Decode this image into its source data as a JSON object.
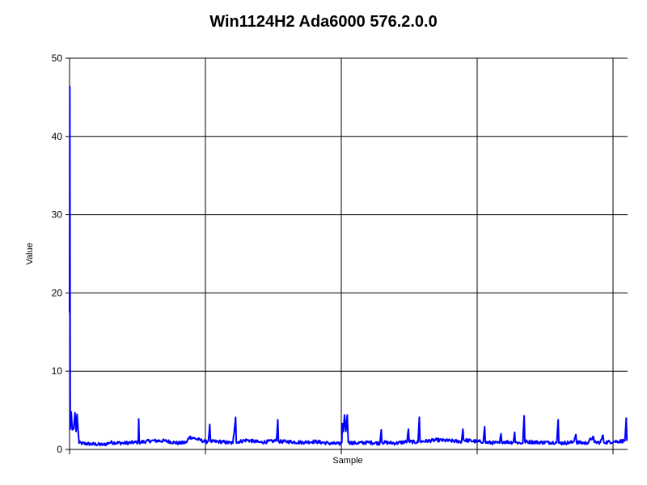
{
  "chart_data": {
    "type": "line",
    "title": "Win1124H2 Ada6000 576.2.0.0",
    "xlabel": "Sample",
    "ylabel": "Value",
    "ylim": [
      0,
      50
    ],
    "xlim": [
      0,
      4100
    ],
    "yticks": [
      0,
      10,
      20,
      30,
      40,
      50
    ],
    "grid": true,
    "line_color": "#0000ff",
    "grid_color": "#000000",
    "series": [
      {
        "values_by_x": [
          [
            0,
            17.5
          ],
          [
            2,
            46.4
          ],
          [
            5,
            2.6
          ],
          [
            12,
            4.8
          ],
          [
            20,
            2.5
          ],
          [
            30,
            2.6
          ],
          [
            40,
            4.7
          ],
          [
            48,
            2.3
          ],
          [
            55,
            4.5
          ],
          [
            62,
            2.6
          ],
          [
            70,
            0.8
          ],
          [
            150,
            0.7
          ],
          [
            250,
            0.6
          ],
          [
            300,
            0.9
          ],
          [
            400,
            0.8
          ],
          [
            480,
            0.9
          ],
          [
            505,
            0.9
          ],
          [
            508,
            3.9
          ],
          [
            512,
            0.9
          ],
          [
            600,
            1.1
          ],
          [
            700,
            1.1
          ],
          [
            800,
            0.8
          ],
          [
            860,
            0.9
          ],
          [
            880,
            1.6
          ],
          [
            920,
            1.4
          ],
          [
            960,
            1.2
          ],
          [
            995,
            1.0
          ],
          [
            1000,
            0.9
          ],
          [
            1020,
            1.1
          ],
          [
            1030,
            3.2
          ],
          [
            1036,
            1.0
          ],
          [
            1100,
            1.0
          ],
          [
            1200,
            0.8
          ],
          [
            1220,
            4.1
          ],
          [
            1225,
            0.9
          ],
          [
            1300,
            1.2
          ],
          [
            1400,
            0.9
          ],
          [
            1520,
            1.1
          ],
          [
            1530,
            3.8
          ],
          [
            1535,
            1.0
          ],
          [
            1600,
            1.0
          ],
          [
            1700,
            0.9
          ],
          [
            1800,
            1.0
          ],
          [
            1900,
            0.8
          ],
          [
            1980,
            0.7
          ],
          [
            2000,
            0.9
          ],
          [
            2005,
            3.3
          ],
          [
            2012,
            2.3
          ],
          [
            2020,
            4.4
          ],
          [
            2030,
            2.3
          ],
          [
            2040,
            4.4
          ],
          [
            2048,
            0.9
          ],
          [
            2100,
            0.8
          ],
          [
            2200,
            0.9
          ],
          [
            2280,
            0.8
          ],
          [
            2290,
            2.5
          ],
          [
            2295,
            0.9
          ],
          [
            2400,
            0.8
          ],
          [
            2480,
            1.0
          ],
          [
            2490,
            2.6
          ],
          [
            2495,
            1.0
          ],
          [
            2560,
            0.9
          ],
          [
            2570,
            4.1
          ],
          [
            2575,
            1.0
          ],
          [
            2700,
            1.2
          ],
          [
            2800,
            1.1
          ],
          [
            2880,
            1.0
          ],
          [
            2890,
            2.6
          ],
          [
            2895,
            1.2
          ],
          [
            3000,
            1.0
          ],
          [
            3040,
            1.0
          ],
          [
            3050,
            2.9
          ],
          [
            3055,
            0.9
          ],
          [
            3160,
            0.8
          ],
          [
            3170,
            2.0
          ],
          [
            3175,
            1.0
          ],
          [
            3260,
            0.9
          ],
          [
            3270,
            2.2
          ],
          [
            3275,
            0.9
          ],
          [
            3330,
            0.8
          ],
          [
            3340,
            4.3
          ],
          [
            3345,
            1.0
          ],
          [
            3450,
            0.9
          ],
          [
            3580,
            0.9
          ],
          [
            3590,
            3.8
          ],
          [
            3595,
            0.8
          ],
          [
            3700,
            0.9
          ],
          [
            3720,
            1.9
          ],
          [
            3725,
            0.9
          ],
          [
            3800,
            0.8
          ],
          [
            3850,
            1.6
          ],
          [
            3855,
            0.9
          ],
          [
            3900,
            0.9
          ],
          [
            3920,
            1.8
          ],
          [
            3925,
            0.9
          ],
          [
            4000,
            1.0
          ],
          [
            4080,
            1.1
          ],
          [
            4090,
            4.0
          ],
          [
            4095,
            1.1
          ]
        ],
        "noise_hint": "dense near-baseline variation around 0.5-1.5"
      }
    ]
  }
}
